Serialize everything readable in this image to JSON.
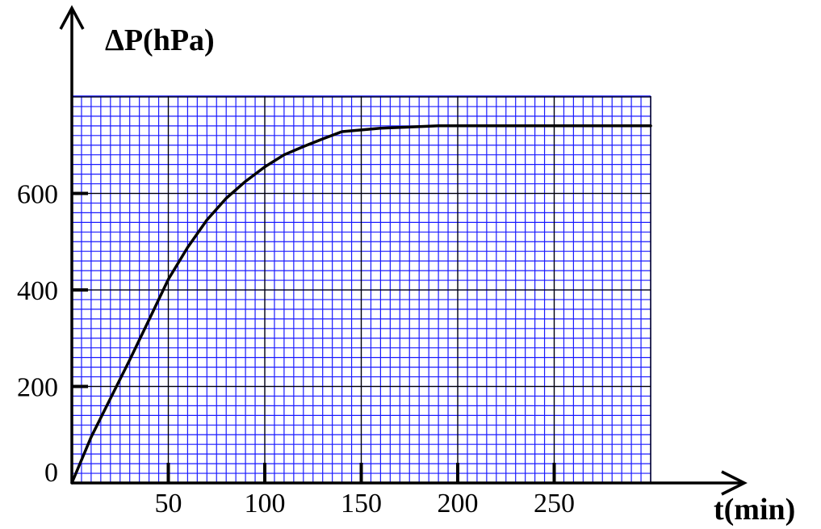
{
  "chart_data": {
    "type": "line",
    "xlabel": "t(min)",
    "ylabel": "ΔP(hPa)",
    "xlim": [
      0,
      300
    ],
    "ylim": [
      0,
      800
    ],
    "x_ticks": [
      50,
      100,
      150,
      200,
      250
    ],
    "y_ticks": [
      0,
      200,
      400,
      600
    ],
    "grid": true,
    "colors": {
      "grid_minor": "#1a1aff",
      "grid_major": "#000000",
      "line": "#000000",
      "axis": "#000000"
    },
    "series": [
      {
        "x": [
          0,
          10,
          20,
          30,
          40,
          50,
          60,
          70,
          80,
          90,
          100,
          110,
          120,
          130,
          140,
          160,
          190,
          220,
          250,
          300
        ],
        "y": [
          0,
          95,
          175,
          255,
          338,
          422,
          488,
          545,
          590,
          625,
          655,
          680,
          697,
          713,
          728,
          735,
          740,
          740,
          740,
          740
        ]
      }
    ]
  }
}
